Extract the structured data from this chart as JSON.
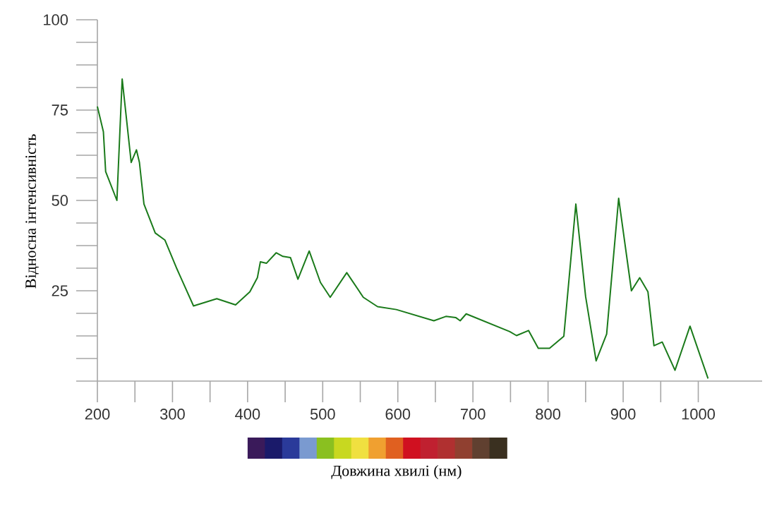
{
  "chart_data": {
    "type": "line",
    "xlabel": "Довжина хвилі (нм)",
    "ylabel": "Відносна інтенсивність",
    "xlim": [
      200,
      1085
    ],
    "ylim": [
      0,
      100
    ],
    "xticks": [
      200,
      {
        "value": 250,
        "label": null
      },
      300,
      {
        "value": 350,
        "label": null
      },
      400,
      {
        "value": 450,
        "label": null
      },
      500,
      {
        "value": 550,
        "label": null
      },
      600,
      {
        "value": 650,
        "label": null
      },
      700,
      {
        "value": 750,
        "label": null
      },
      800,
      {
        "value": 850,
        "label": null
      },
      900,
      {
        "value": 950,
        "label": null
      },
      1000
    ],
    "yticks": [
      {
        "value": 0,
        "label": null
      },
      {
        "value": 6.25,
        "label": null
      },
      {
        "value": 12.5,
        "label": null
      },
      {
        "value": 18.75,
        "label": null
      },
      25,
      {
        "value": 31.25,
        "label": null
      },
      {
        "value": 37.5,
        "label": null
      },
      {
        "value": 43.75,
        "label": null
      },
      50,
      {
        "value": 56.25,
        "label": null
      },
      {
        "value": 62.5,
        "label": null
      },
      {
        "value": 68.75,
        "label": null
      },
      75,
      {
        "value": 81.25,
        "label": null
      },
      {
        "value": 87.5,
        "label": null
      },
      {
        "value": 93.75,
        "label": null
      },
      100
    ],
    "grid": false,
    "marker": "none",
    "line_style": "solid",
    "x": [
      200,
      208,
      211,
      226,
      233,
      238,
      245,
      252,
      256,
      262,
      277,
      290,
      306,
      328,
      359,
      384,
      403,
      413,
      417,
      425,
      438,
      447,
      457,
      467,
      482,
      497,
      510,
      532,
      554,
      573,
      598,
      648,
      664,
      677,
      683,
      691,
      749,
      758,
      774,
      787,
      802,
      821,
      837,
      850,
      864,
      878,
      894,
      911,
      922,
      933,
      941,
      952,
      969,
      989,
      1013
    ],
    "series": [
      {
        "color": "#1a7a1a",
        "values": [
          76,
          69,
          58,
          50,
          83.6,
          74,
          60.5,
          64,
          60.5,
          49,
          41,
          39,
          31,
          20.8,
          22.8,
          21.1,
          24.7,
          28.6,
          33,
          32.6,
          35.5,
          34.5,
          34.2,
          28.2,
          36,
          27.3,
          23.2,
          30,
          23.2,
          20.6,
          19.8,
          16.7,
          17.9,
          17.6,
          16.7,
          18.6,
          13.7,
          12.6,
          14,
          9.1,
          9.1,
          12.4,
          49,
          23.4,
          5.6,
          13,
          50.6,
          25,
          28.6,
          24.7,
          9.8,
          10.8,
          3,
          15.2,
          0.7
        ]
      }
    ]
  }
}
